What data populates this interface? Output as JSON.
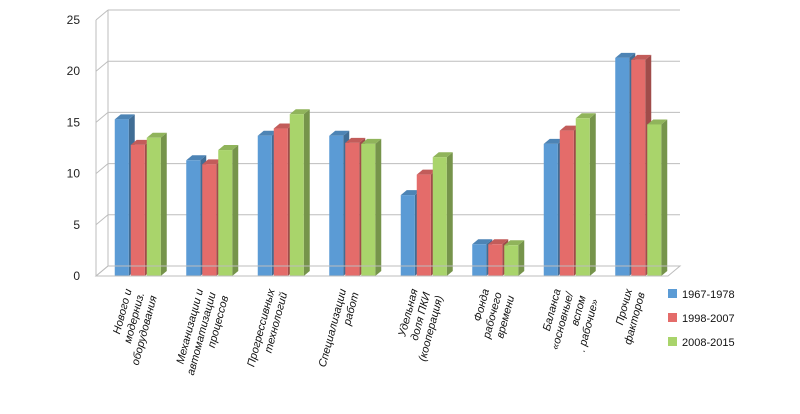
{
  "chart_data": {
    "type": "bar",
    "title": "",
    "xlabel": "",
    "ylabel": "",
    "ylim": [
      0,
      25
    ],
    "yticks": [
      0,
      5,
      10,
      15,
      20,
      25
    ],
    "grid": true,
    "legend_position": "right",
    "categories": [
      [
        "Нового и",
        "модерниз.",
        "оборудования"
      ],
      [
        "Механизации и",
        "автоматизации",
        "процессов"
      ],
      [
        "Прогрессивных",
        "технологий"
      ],
      [
        "Специализации",
        "работ"
      ],
      [
        "Удельная",
        "доля ПКИ",
        "(кооперация)"
      ],
      [
        "Фонда",
        "рабочего",
        "времени"
      ],
      [
        "Баланса",
        "«основные/",
        "вспом",
        ". рабочие»"
      ],
      [
        "Прочих",
        "факторов"
      ]
    ],
    "series": [
      {
        "name": "1967-1978",
        "color": "#5b9bd5",
        "values": [
          15.3,
          11.3,
          13.7,
          13.7,
          7.9,
          3.1,
          12.9,
          21.3
        ]
      },
      {
        "name": "1998-2007",
        "color": "#e46c6a",
        "values": [
          12.8,
          10.9,
          14.4,
          13.0,
          9.9,
          3.1,
          14.2,
          21.1
        ]
      },
      {
        "name": "2008-2015",
        "color": "#a9d46b",
        "values": [
          13.5,
          12.3,
          15.8,
          12.9,
          11.6,
          3.0,
          15.4,
          14.8
        ]
      }
    ]
  }
}
